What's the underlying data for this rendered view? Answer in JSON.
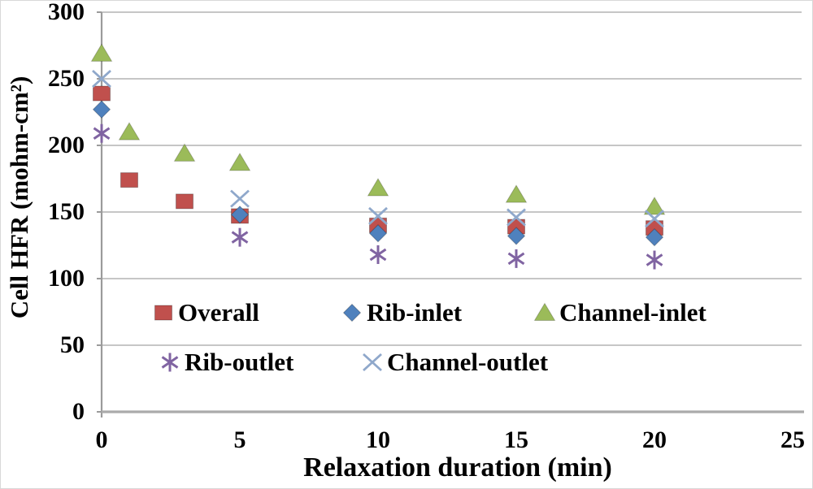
{
  "page": {
    "background": "#ffffff"
  },
  "chart_data": {
    "type": "scatter",
    "title": "",
    "xlabel": "Relaxation duration (min)",
    "ylabel": "Cell HFR (mohm-cm²)",
    "xlim": [
      0,
      25
    ],
    "ylim": [
      0,
      300
    ],
    "x_tick_values": [
      0,
      5,
      10,
      15,
      20,
      25
    ],
    "y_tick_values": [
      0,
      50,
      100,
      150,
      200,
      250,
      300
    ],
    "grid": "horizontal gridlines every 50, light gray, no vertical gridlines",
    "legend_position": "inside plot, lower-left, two rows, no border",
    "axis_color": "#9b9b9b",
    "gridline_color": "#b4b4b4",
    "series": [
      {
        "name": "Overall",
        "marker": "square",
        "color": "#c0504d",
        "points": [
          [
            0,
            239
          ],
          [
            1,
            174
          ],
          [
            3,
            158
          ],
          [
            5,
            147
          ],
          [
            10,
            140
          ],
          [
            15,
            139
          ],
          [
            20,
            138
          ]
        ]
      },
      {
        "name": "Rib-inlet",
        "marker": "diamond",
        "color": "#4f81bd",
        "points": [
          [
            0,
            227
          ],
          [
            5,
            148
          ],
          [
            10,
            134
          ],
          [
            15,
            132
          ],
          [
            20,
            131
          ]
        ]
      },
      {
        "name": "Channel-inlet",
        "marker": "triangle",
        "color": "#9bbb59",
        "points": [
          [
            0,
            269
          ],
          [
            1,
            210
          ],
          [
            3,
            194
          ],
          [
            5,
            187
          ],
          [
            10,
            168
          ],
          [
            15,
            163
          ],
          [
            20,
            154
          ]
        ]
      },
      {
        "name": "Rib-outlet",
        "marker": "asterisk",
        "color": "#8064a2",
        "points": [
          [
            0,
            209
          ],
          [
            5,
            131
          ],
          [
            10,
            118
          ],
          [
            15,
            115
          ],
          [
            20,
            114
          ]
        ]
      },
      {
        "name": "Channel-outlet",
        "marker": "x",
        "color": "#8fa8cb",
        "points": [
          [
            0,
            250
          ],
          [
            5,
            160
          ],
          [
            10,
            147
          ],
          [
            15,
            146
          ],
          [
            20,
            145
          ]
        ]
      }
    ],
    "legend_rows": [
      [
        "Overall",
        "Rib-inlet",
        "Channel-inlet"
      ],
      [
        "Rib-outlet",
        "Channel-outlet"
      ]
    ]
  }
}
